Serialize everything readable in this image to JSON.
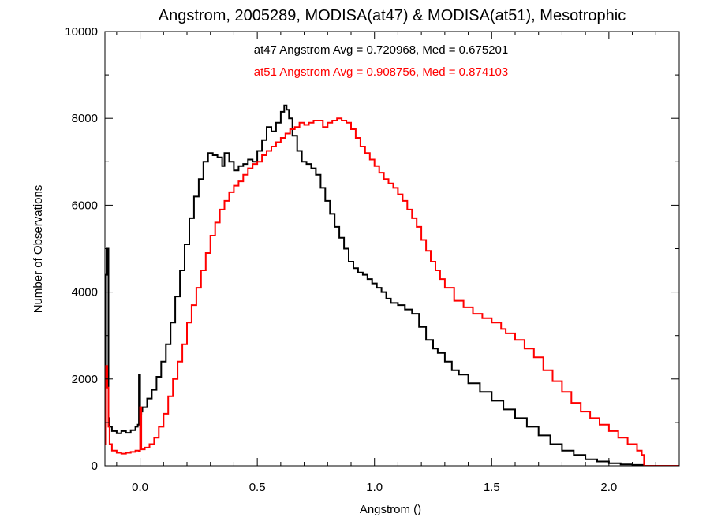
{
  "chart_data": {
    "type": "line",
    "title": "Angstrom, 2005289, MODISA(at47) & MODISA(at51), Mesotrophic",
    "xlabel": "Angstrom ()",
    "ylabel": "Number of Observations",
    "xlim": [
      -0.15,
      2.3
    ],
    "ylim": [
      0,
      10000
    ],
    "x_ticks": [
      "0.0",
      "0.5",
      "1.0",
      "1.5",
      "2.0"
    ],
    "x_tick_values": [
      0.0,
      0.5,
      1.0,
      1.5,
      2.0
    ],
    "y_ticks": [
      "0",
      "2000",
      "4000",
      "6000",
      "8000",
      "10000"
    ],
    "y_tick_values": [
      0,
      2000,
      4000,
      6000,
      8000,
      10000
    ],
    "grid": false,
    "step": true,
    "annotations": [
      {
        "text": "at47 Angstrom Avg = 0.720968, Med = 0.675201",
        "color": "#000000"
      },
      {
        "text": "at51 Angstrom Avg = 0.908756, Med = 0.874103",
        "color": "#ff0000"
      }
    ],
    "series": [
      {
        "color": "#000000",
        "x": [
          -0.15,
          -0.145,
          -0.14,
          -0.135,
          -0.13,
          -0.12,
          -0.1,
          -0.08,
          -0.06,
          -0.04,
          -0.02,
          -0.01,
          -0.005,
          0.0,
          0.005,
          0.01,
          0.03,
          0.05,
          0.07,
          0.09,
          0.11,
          0.13,
          0.15,
          0.17,
          0.19,
          0.21,
          0.23,
          0.25,
          0.27,
          0.29,
          0.31,
          0.33,
          0.35,
          0.36,
          0.38,
          0.4,
          0.42,
          0.44,
          0.46,
          0.48,
          0.5,
          0.52,
          0.54,
          0.56,
          0.58,
          0.6,
          0.615,
          0.625,
          0.635,
          0.65,
          0.67,
          0.69,
          0.71,
          0.73,
          0.75,
          0.77,
          0.79,
          0.81,
          0.83,
          0.85,
          0.87,
          0.89,
          0.91,
          0.93,
          0.95,
          0.97,
          0.99,
          1.01,
          1.03,
          1.05,
          1.07,
          1.1,
          1.13,
          1.16,
          1.19,
          1.22,
          1.25,
          1.27,
          1.3,
          1.33,
          1.36,
          1.4,
          1.45,
          1.5,
          1.55,
          1.6,
          1.65,
          1.7,
          1.75,
          1.8,
          1.85,
          1.9,
          1.95,
          2.0,
          2.05,
          2.1,
          2.15,
          2.3
        ],
        "values": [
          1500,
          4400,
          5000,
          1100,
          900,
          800,
          750,
          800,
          760,
          820,
          900,
          950,
          2100,
          1200,
          1250,
          1350,
          1550,
          1750,
          2050,
          2400,
          2800,
          3300,
          3900,
          4500,
          5100,
          5700,
          6200,
          6600,
          7000,
          7200,
          7150,
          7100,
          6900,
          7200,
          7000,
          6800,
          6900,
          6950,
          7050,
          7000,
          7250,
          7500,
          7800,
          7700,
          7900,
          8150,
          8300,
          8200,
          8000,
          7600,
          7250,
          7000,
          6950,
          6850,
          6700,
          6400,
          6100,
          5800,
          5500,
          5250,
          5000,
          4700,
          4550,
          4450,
          4400,
          4300,
          4200,
          4100,
          4000,
          3850,
          3750,
          3700,
          3600,
          3500,
          3200,
          2900,
          2700,
          2600,
          2400,
          2200,
          2100,
          1900,
          1700,
          1500,
          1300,
          1100,
          900,
          700,
          500,
          350,
          250,
          150,
          100,
          60,
          30,
          20,
          0,
          0
        ]
      },
      {
        "color": "#ff0000",
        "x": [
          -0.15,
          -0.145,
          -0.14,
          -0.135,
          -0.13,
          -0.12,
          -0.1,
          -0.08,
          -0.06,
          -0.04,
          -0.02,
          -0.005,
          0.0,
          0.005,
          0.02,
          0.04,
          0.06,
          0.08,
          0.1,
          0.12,
          0.14,
          0.16,
          0.18,
          0.2,
          0.22,
          0.24,
          0.26,
          0.28,
          0.3,
          0.32,
          0.34,
          0.36,
          0.38,
          0.4,
          0.42,
          0.44,
          0.46,
          0.48,
          0.5,
          0.52,
          0.54,
          0.56,
          0.58,
          0.6,
          0.62,
          0.64,
          0.66,
          0.68,
          0.7,
          0.72,
          0.74,
          0.76,
          0.78,
          0.8,
          0.82,
          0.84,
          0.86,
          0.88,
          0.9,
          0.92,
          0.94,
          0.96,
          0.98,
          1.0,
          1.02,
          1.04,
          1.06,
          1.08,
          1.1,
          1.12,
          1.14,
          1.16,
          1.18,
          1.2,
          1.22,
          1.24,
          1.26,
          1.28,
          1.3,
          1.34,
          1.38,
          1.42,
          1.46,
          1.5,
          1.54,
          1.56,
          1.6,
          1.64,
          1.68,
          1.72,
          1.76,
          1.8,
          1.84,
          1.88,
          1.92,
          1.96,
          2.0,
          2.04,
          2.08,
          2.12,
          2.14,
          2.15,
          2.3
        ],
        "values": [
          500,
          2300,
          1800,
          900,
          500,
          350,
          300,
          280,
          300,
          320,
          350,
          340,
          1350,
          380,
          420,
          500,
          650,
          900,
          1200,
          1600,
          2000,
          2400,
          2800,
          3300,
          3700,
          4100,
          4500,
          4900,
          5300,
          5600,
          5900,
          6100,
          6300,
          6450,
          6550,
          6700,
          6850,
          6950,
          7000,
          7150,
          7250,
          7350,
          7450,
          7550,
          7650,
          7750,
          7800,
          7900,
          7850,
          7900,
          7950,
          7950,
          7800,
          7900,
          7950,
          8000,
          7950,
          7900,
          7750,
          7550,
          7350,
          7200,
          7050,
          6900,
          6750,
          6600,
          6500,
          6400,
          6250,
          6100,
          5900,
          5700,
          5500,
          5200,
          4950,
          4700,
          4500,
          4300,
          4100,
          3800,
          3650,
          3500,
          3400,
          3300,
          3150,
          3050,
          2900,
          2700,
          2500,
          2200,
          1950,
          1700,
          1450,
          1250,
          1100,
          950,
          800,
          650,
          500,
          350,
          250,
          0,
          0
        ]
      }
    ]
  }
}
